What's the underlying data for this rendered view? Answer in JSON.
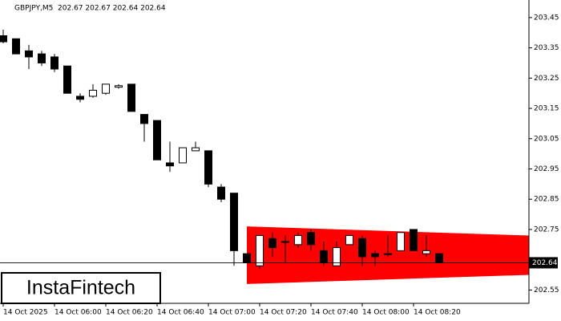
{
  "chart_data": {
    "type": "candlestick",
    "title": "GBPJPY,M5  202.67 202.67 202.64 202.64",
    "logo": "InstaFintech",
    "categories": [
      "14 Oct 2025",
      null,
      null,
      null,
      "14 Oct 06:00",
      null,
      null,
      null,
      "14 Oct 06:20",
      null,
      null,
      null,
      "14 Oct 06:40",
      null,
      null,
      null,
      "14 Oct 07:00",
      null,
      null,
      null,
      "14 Oct 07:20",
      null,
      null,
      null,
      "14 Oct 07:40",
      null,
      null,
      null,
      "14 Oct 08:00",
      null,
      null,
      null,
      "14 Oct 08:20",
      null,
      null
    ],
    "open": [
      203.39,
      203.38,
      203.34,
      203.33,
      203.32,
      203.29,
      203.19,
      203.19,
      203.2,
      203.22,
      203.23,
      203.13,
      203.11,
      202.97,
      202.97,
      203.01,
      203.01,
      202.89,
      202.87,
      202.67,
      202.63,
      202.72,
      202.71,
      202.7,
      202.74,
      202.68,
      202.63,
      202.7,
      202.72,
      202.67,
      202.67,
      202.68,
      202.75,
      202.67,
      202.67
    ],
    "high": [
      203.41,
      203.38,
      203.36,
      203.34,
      203.33,
      203.29,
      203.2,
      203.23,
      203.23,
      203.23,
      203.23,
      203.13,
      203.11,
      203.04,
      203.02,
      203.04,
      203.01,
      202.9,
      202.87,
      202.67,
      202.73,
      202.74,
      202.73,
      202.74,
      202.75,
      202.71,
      202.71,
      202.73,
      202.73,
      202.68,
      202.73,
      202.74,
      202.75,
      202.73,
      202.67
    ],
    "low": [
      203.365,
      203.33,
      203.28,
      203.29,
      203.27,
      203.2,
      203.17,
      203.185,
      203.195,
      203.215,
      203.14,
      203.04,
      202.98,
      202.94,
      202.97,
      203.01,
      202.89,
      202.84,
      202.63,
      202.64,
      202.62,
      202.66,
      202.64,
      202.69,
      202.68,
      202.63,
      202.63,
      202.7,
      202.63,
      202.63,
      202.66,
      202.68,
      202.68,
      202.66,
      202.64
    ],
    "close": [
      203.37,
      203.33,
      203.32,
      203.3,
      203.28,
      203.2,
      203.18,
      203.21,
      203.23,
      203.225,
      203.14,
      203.1,
      202.98,
      202.96,
      203.02,
      203.02,
      202.9,
      202.85,
      202.68,
      202.64,
      202.73,
      202.69,
      202.71,
      202.73,
      202.7,
      202.64,
      202.69,
      202.73,
      202.66,
      202.66,
      202.67,
      202.74,
      202.68,
      202.68,
      202.64
    ],
    "up_color": "#ffffff",
    "down_color": "#000000",
    "pattern": {
      "color": "#ff0000",
      "upper": [
        202.76,
        202.73
      ],
      "lower": [
        202.57,
        202.6
      ]
    },
    "current_price": 202.64,
    "ylim": [
      202.506,
      203.508
    ],
    "yticks": [
      202.55,
      202.75,
      202.85,
      202.95,
      203.05,
      203.15,
      203.25,
      203.35,
      203.45
    ]
  }
}
